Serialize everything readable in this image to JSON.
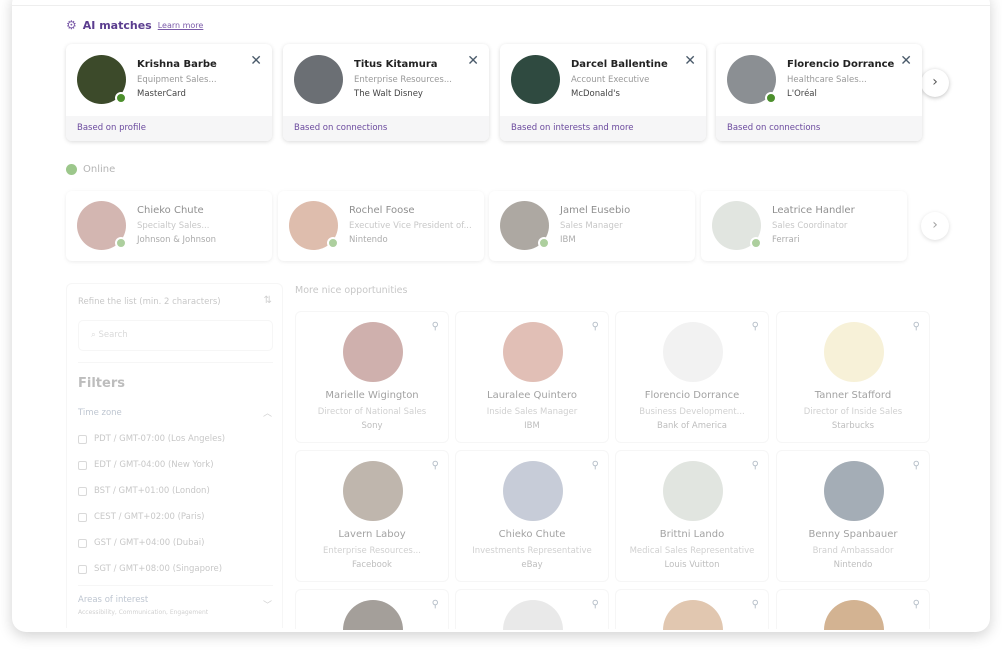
{
  "ai_matches": {
    "title": "AI matches",
    "learn_more": "Learn more",
    "icon": "sparkle-gear-icon",
    "cards": [
      {
        "name": "Krishna Barbe",
        "title": "Equipment Sales...",
        "company": "MasterCard",
        "reason": "Based on profile",
        "online": true,
        "avatar_color": "#3c4a2a"
      },
      {
        "name": "Titus Kitamura",
        "title": "Enterprise Resources...",
        "company": "The Walt Disney",
        "reason": "Based on connections",
        "online": false,
        "avatar_color": "#6b6f74"
      },
      {
        "name": "Darcel Ballentine",
        "title": "Account Executive",
        "company": "McDonald's",
        "reason": "Based on interests and more",
        "online": false,
        "avatar_color": "#2f4a40"
      },
      {
        "name": "Florencio Dorrance",
        "title": "Healthcare Sales...",
        "company": "L'Oréal",
        "reason": "Based on connections",
        "online": true,
        "avatar_color": "#8b8f93"
      }
    ]
  },
  "online": {
    "label": "Online",
    "color": "#4c9a2c",
    "cards": [
      {
        "name": "Chieko Chute",
        "title": "Specialty Sales...",
        "company": "Johnson & Johnson",
        "avatar_color": "#b07a72"
      },
      {
        "name": "Rochel Foose",
        "title": "Executive Vice President of...",
        "company": "Nintendo",
        "avatar_color": "#c4876a"
      },
      {
        "name": "Jamel Eusebio",
        "title": "Sales Manager",
        "company": "IBM",
        "avatar_color": "#6a6256"
      },
      {
        "name": "Leatrice Handler",
        "title": "Sales Coordinator",
        "company": "Ferrari",
        "avatar_color": "#c9cfc6"
      }
    ]
  },
  "sidebar": {
    "refine_label": "Refine the list (min. 2 characters)",
    "search_placeholder": "Search",
    "filters_title": "Filters",
    "time_zone_label": "Time zone",
    "time_zones": [
      "PDT / GMT-07:00 (Los Angeles)",
      "EDT / GMT-04:00 (New York)",
      "BST / GMT+01:00 (London)",
      "CEST / GMT+02:00 (Paris)",
      "GST / GMT+04:00 (Dubai)",
      "SGT / GMT+08:00 (Singapore)"
    ],
    "areas_label": "Areas of interest",
    "areas_selected": "Accessibility, Communication, Engagement"
  },
  "opportunities": {
    "title": "More nice opportunities",
    "people": [
      {
        "name": "Marielle Wigington",
        "title": "Director of National Sales",
        "company": "Sony",
        "avatar_color": "#a8706a"
      },
      {
        "name": "Lauralee Quintero",
        "title": "Inside Sales Manager",
        "company": "IBM",
        "avatar_color": "#c98a7a"
      },
      {
        "name": "Florencio Dorrance",
        "title": "Business Development...",
        "company": "Bank of America",
        "avatar_color": "#e8e8e8"
      },
      {
        "name": "Tanner Stafford",
        "title": "Director of Inside Sales",
        "company": "Starbucks",
        "avatar_color": "#f1e6b8"
      },
      {
        "name": "Lavern Laboy",
        "title": "Enterprise Resources...",
        "company": "Facebook",
        "avatar_color": "#8a7a6a"
      },
      {
        "name": "Chieko Chute",
        "title": "Investments Representative",
        "company": "eBay",
        "avatar_color": "#9aa3b8"
      },
      {
        "name": "Brittni Lando",
        "title": "Medical Sales Representative",
        "company": "Louis Vuitton",
        "avatar_color": "#c9cfc6"
      },
      {
        "name": "Benny Spanbauer",
        "title": "Brand Ambassador",
        "company": "Nintendo",
        "avatar_color": "#5a6a7a"
      },
      {
        "name": "",
        "title": "",
        "company": "",
        "avatar_color": "#5a5048"
      },
      {
        "name": "",
        "title": "",
        "company": "",
        "avatar_color": "#d8d8d8"
      },
      {
        "name": "",
        "title": "",
        "company": "",
        "avatar_color": "#c99a70"
      },
      {
        "name": "",
        "title": "",
        "company": "",
        "avatar_color": "#b0763a"
      }
    ]
  }
}
